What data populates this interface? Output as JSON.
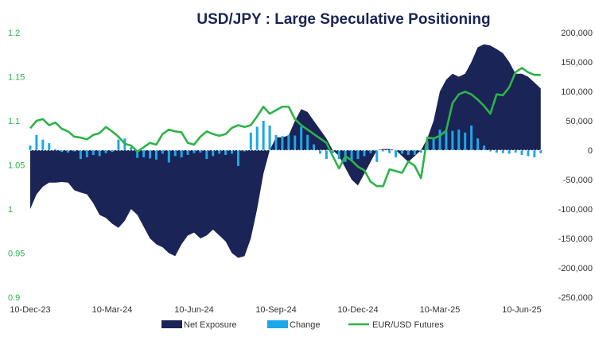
{
  "chart_data": {
    "type": "combo",
    "title": "USD/JPY : Large Speculative Positioning",
    "colors": {
      "net_exposure": "#1a2456",
      "change": "#1aa8e8",
      "futures": "#2db34a"
    },
    "x_ticks": [
      "10-Dec-23",
      "10-Mar-24",
      "10-Jun-24",
      "10-Sep-24",
      "10-Dec-24",
      "10-Mar-25",
      "10-Jun-25"
    ],
    "left_axis": {
      "min": 0.9,
      "max": 1.2,
      "ticks": [
        "0.9",
        "0.95",
        "1",
        "1.05",
        "1.1",
        "1.15",
        "1.2"
      ]
    },
    "right_axis": {
      "min": -250000,
      "max": 200000,
      "ticks": [
        "-250,000",
        "-200,000",
        "-150,000",
        "-100,000",
        "-50,000",
        "0",
        "50,000",
        "100,000",
        "150,000",
        "200,000"
      ]
    },
    "week_index_of_first_tick": 0,
    "weeks_per_tick": 13,
    "legend": [
      "Net Exposure",
      "Change",
      "EUR/USD Futures"
    ],
    "series": [
      {
        "name": "Net Exposure",
        "kind": "area",
        "axis": "right",
        "values": [
          -100000,
          -75000,
          -62000,
          -55000,
          -55000,
          -54000,
          -55000,
          -68000,
          -72000,
          -75000,
          -90000,
          -110000,
          -115000,
          -125000,
          -132000,
          -120000,
          -100000,
          -110000,
          -130000,
          -150000,
          -160000,
          -165000,
          -175000,
          -180000,
          -160000,
          -145000,
          -140000,
          -150000,
          -145000,
          -135000,
          -145000,
          -155000,
          -175000,
          -183000,
          -180000,
          -150000,
          -100000,
          -40000,
          0,
          22000,
          22000,
          25000,
          50000,
          70000,
          65000,
          50000,
          35000,
          20000,
          0,
          -10000,
          -30000,
          -50000,
          -60000,
          -40000,
          -20000,
          0,
          2000,
          2000,
          0,
          -10000,
          -20000,
          -10000,
          0,
          20000,
          50000,
          100000,
          120000,
          130000,
          125000,
          130000,
          150000,
          175000,
          180000,
          178000,
          172000,
          165000,
          150000,
          130000,
          130000,
          125000,
          115000,
          105000
        ]
      },
      {
        "name": "Change",
        "kind": "bar",
        "axis": "right",
        "values": [
          8000,
          26000,
          18000,
          12000,
          2000,
          -3000,
          -4000,
          -2000,
          -15000,
          -12000,
          -8000,
          -10000,
          -5000,
          -3000,
          18000,
          20000,
          5000,
          -13000,
          -12000,
          -14000,
          -16000,
          -6000,
          -21000,
          -10000,
          -12000,
          -8000,
          -5000,
          -4000,
          -15000,
          -10000,
          -6000,
          -8000,
          -6000,
          -27000,
          -2000,
          30000,
          40000,
          50000,
          42000,
          26000,
          24000,
          26000,
          25000,
          40000,
          26000,
          10000,
          -6000,
          -15000,
          -5000,
          -15000,
          -20000,
          -18000,
          -15000,
          -10000,
          -5000,
          -20000,
          -2000,
          -5000,
          -12000,
          -6000,
          -8000,
          -8000,
          -4000,
          15000,
          22000,
          35000,
          32000,
          33000,
          35000,
          30000,
          42000,
          20000,
          8000,
          -2000,
          -4000,
          -5000,
          -6000,
          -4000,
          -8000,
          -10000,
          -12000,
          -5000
        ]
      },
      {
        "name": "EUR/USD Futures",
        "kind": "line",
        "axis": "left",
        "values": [
          1.0915,
          1.1,
          1.102,
          1.095,
          1.098,
          1.091,
          1.088,
          1.082,
          1.081,
          1.079,
          1.084,
          1.086,
          1.093,
          1.088,
          1.082,
          1.074,
          1.072,
          1.065,
          1.07,
          1.075,
          1.073,
          1.085,
          1.09,
          1.088,
          1.087,
          1.075,
          1.073,
          1.082,
          1.088,
          1.085,
          1.083,
          1.085,
          1.092,
          1.095,
          1.093,
          1.095,
          1.105,
          1.116,
          1.108,
          1.112,
          1.116,
          1.116,
          1.102,
          1.095,
          1.09,
          1.085,
          1.08,
          1.075,
          1.06,
          1.046,
          1.06,
          1.055,
          1.048,
          1.044,
          1.031,
          1.026,
          1.026,
          1.045,
          1.043,
          1.041,
          1.054,
          1.049,
          1.035,
          1.081,
          1.08,
          1.083,
          1.089,
          1.12,
          1.13,
          1.133,
          1.13,
          1.124,
          1.117,
          1.108,
          1.13,
          1.129,
          1.138,
          1.155,
          1.16,
          1.155,
          1.152,
          1.152
        ]
      }
    ]
  }
}
